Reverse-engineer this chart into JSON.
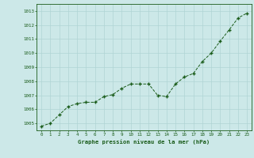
{
  "x": [
    0,
    1,
    2,
    3,
    4,
    5,
    6,
    7,
    8,
    9,
    10,
    11,
    12,
    13,
    14,
    15,
    16,
    17,
    18,
    19,
    20,
    21,
    22,
    23
  ],
  "y": [
    1004.8,
    1005.0,
    1005.6,
    1006.2,
    1006.4,
    1006.5,
    1006.5,
    1006.9,
    1007.05,
    1007.5,
    1007.8,
    1007.8,
    1007.8,
    1007.0,
    1006.9,
    1007.8,
    1008.3,
    1008.55,
    1009.4,
    1010.0,
    1010.85,
    1011.65,
    1012.5,
    1012.85
  ],
  "xlim": [
    -0.5,
    23.5
  ],
  "ylim": [
    1004.5,
    1013.5
  ],
  "yticks": [
    1005,
    1006,
    1007,
    1008,
    1009,
    1010,
    1011,
    1012,
    1013
  ],
  "xticks": [
    0,
    1,
    2,
    3,
    4,
    5,
    6,
    7,
    8,
    9,
    10,
    11,
    12,
    13,
    14,
    15,
    16,
    17,
    18,
    19,
    20,
    21,
    22,
    23
  ],
  "xlabel": "Graphe pression niveau de la mer (hPa)",
  "line_color": "#1a5c1a",
  "marker_color": "#1a5c1a",
  "bg_color": "#cce8e8",
  "grid_color": "#b0d4d4",
  "axis_color": "#1a5c1a",
  "tick_color": "#1a5c1a",
  "xlabel_color": "#1a5c1a"
}
